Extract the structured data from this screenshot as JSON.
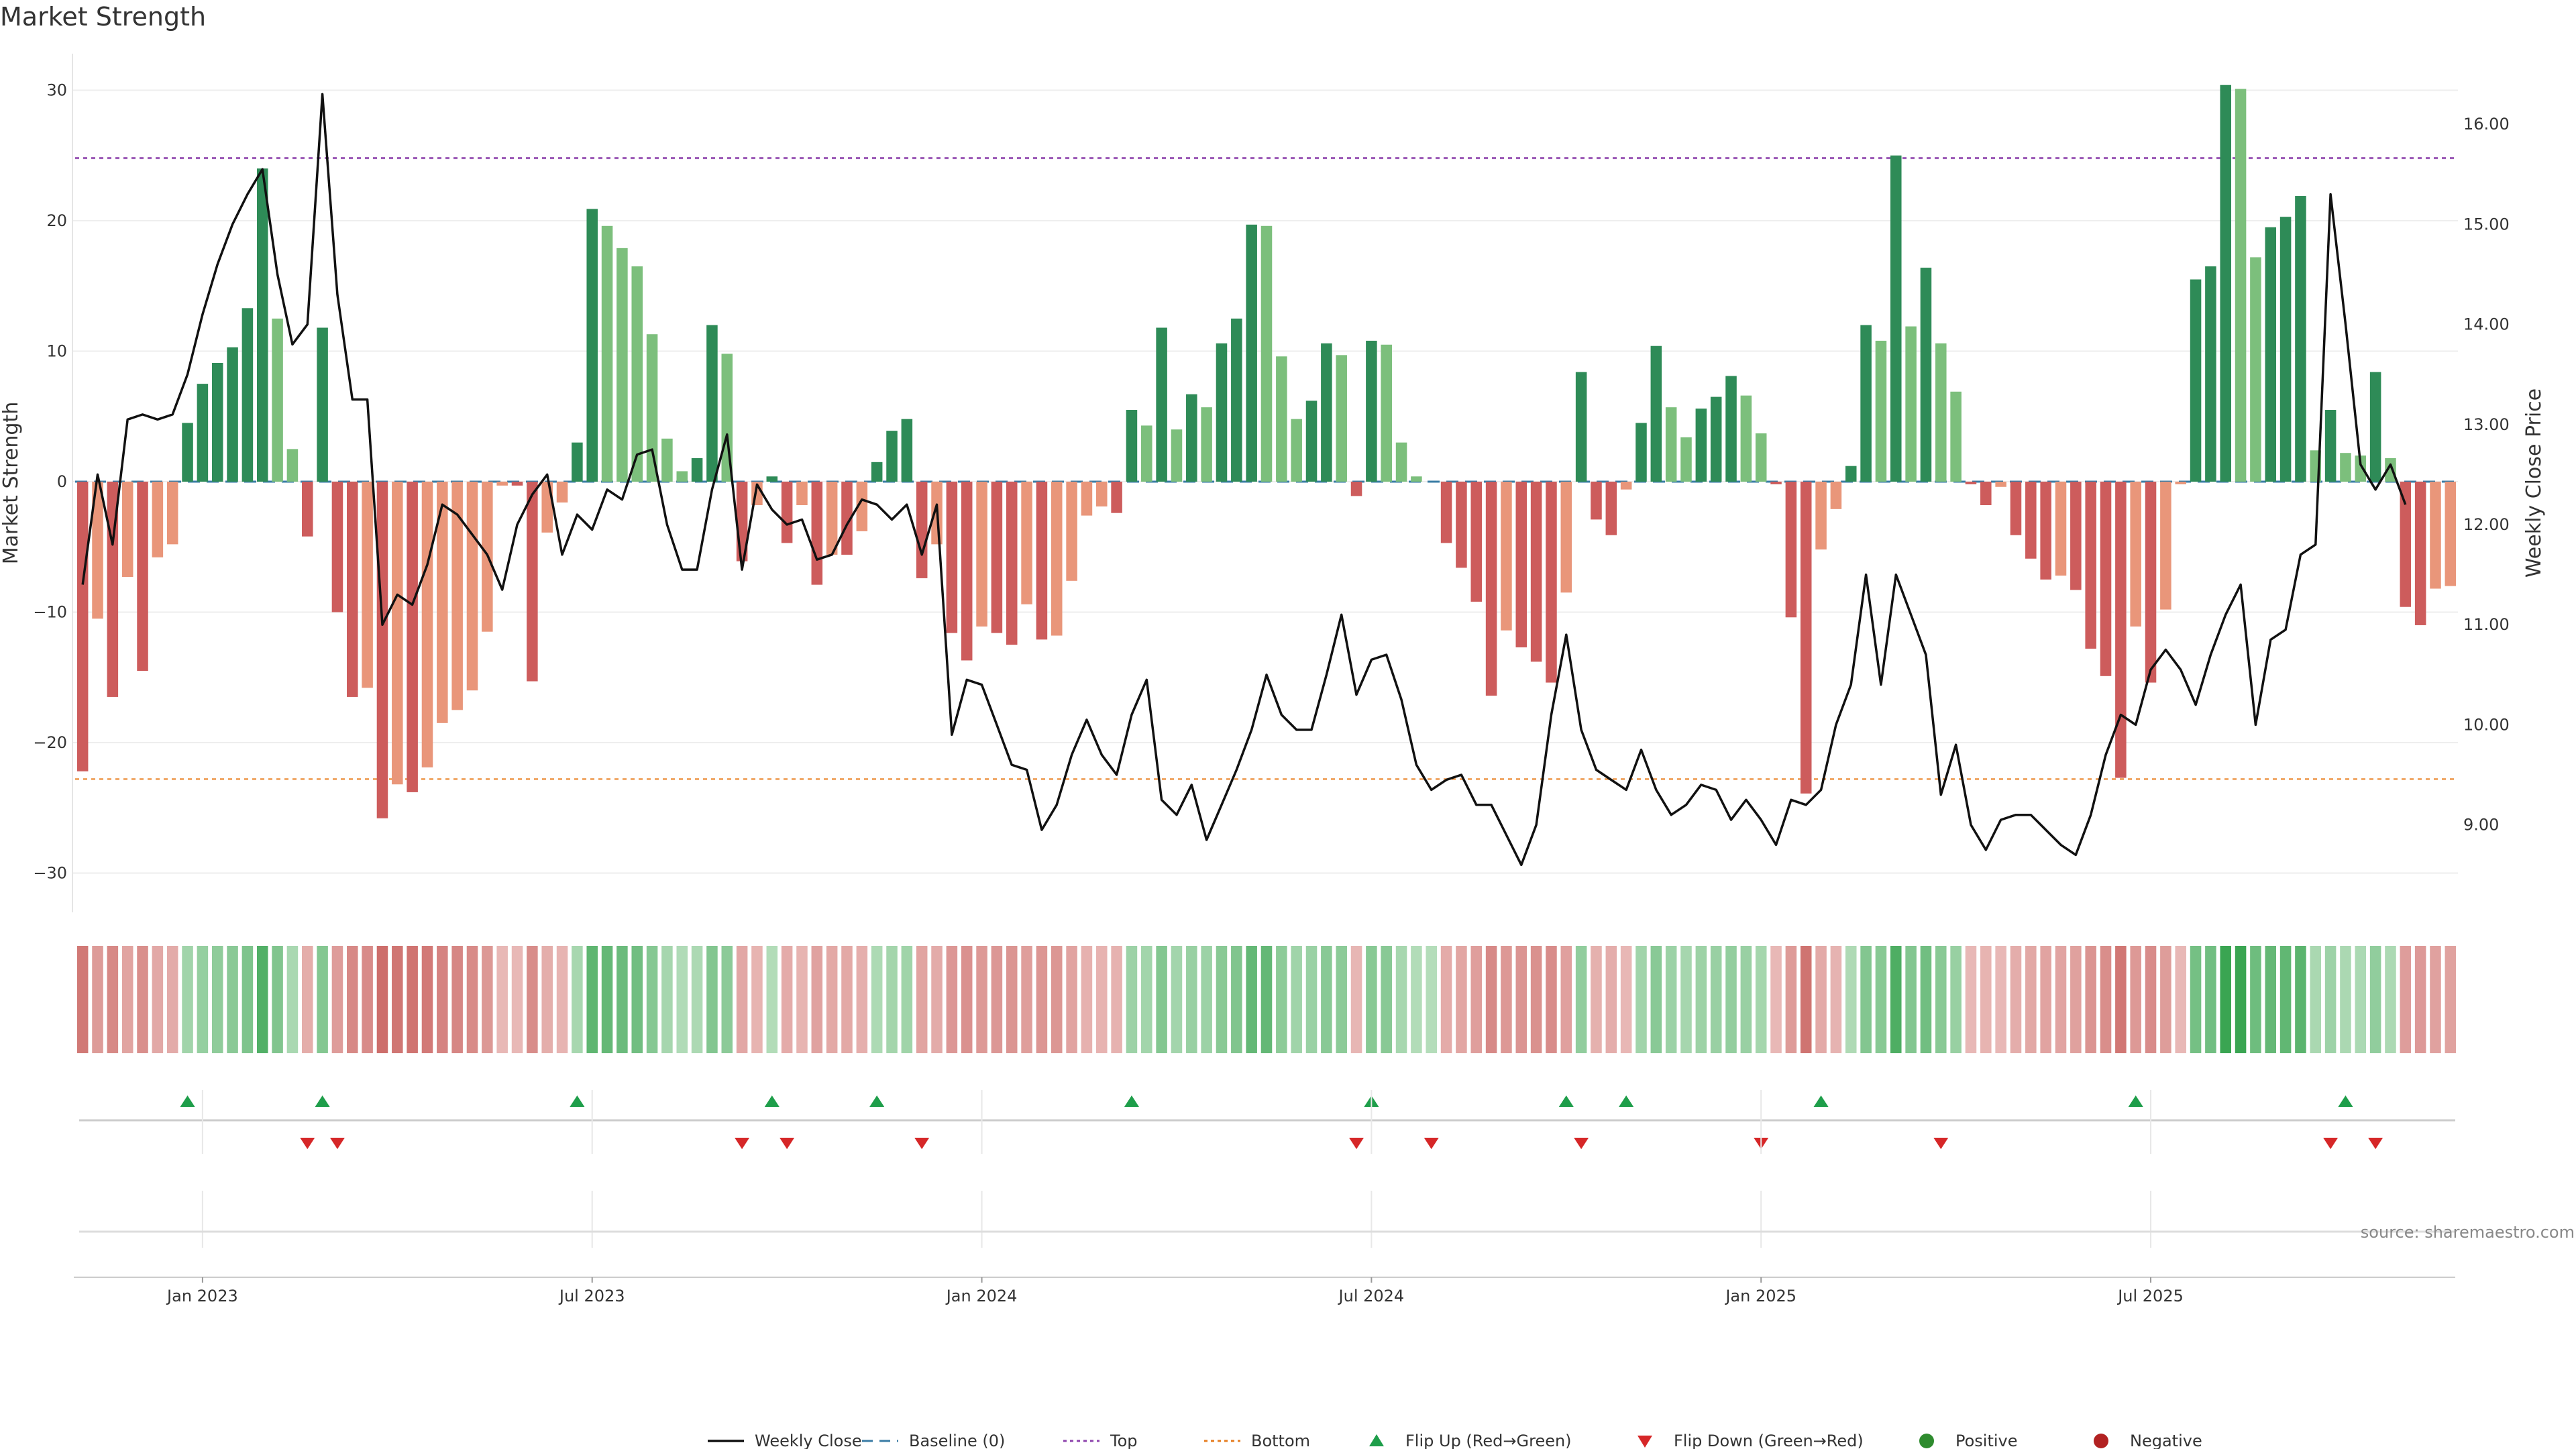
{
  "chart_data": {
    "type": "bar",
    "title": "Market Strength",
    "ylabel_left": "Market Strength",
    "ylabel_right": "Weekly Close Price",
    "ylim_left": [
      -33,
      33
    ],
    "ylim_right": [
      8.4,
      16.5
    ],
    "left_ticks": [
      "30",
      "20",
      "10",
      "0",
      "−10",
      "−20",
      "−30"
    ],
    "left_tick_values": [
      30,
      20,
      10,
      0,
      -10,
      -20,
      -30
    ],
    "right_ticks": [
      "16.00",
      "15.00",
      "14.00",
      "13.00",
      "12.00",
      "11.00",
      "10.00",
      "9.00"
    ],
    "right_tick_values": [
      16,
      15,
      14,
      13,
      12,
      11,
      10,
      9
    ],
    "x_tick_labels": [
      "Jan 2023",
      "Jul 2023",
      "Jan 2024",
      "Jul 2024",
      "Jan 2025",
      "Jul 2025"
    ],
    "x_tick_weeks": [
      8,
      34,
      60,
      86,
      112,
      138
    ],
    "top_line": 24.8,
    "bottom_line": -22.8,
    "strength": [
      -22.2,
      -10.5,
      -16.5,
      -7.3,
      -14.5,
      -5.8,
      -4.8,
      4.5,
      7.5,
      9.1,
      10.3,
      13.3,
      24.0,
      12.5,
      2.5,
      -4.2,
      11.8,
      -10.0,
      -16.5,
      -15.8,
      -25.8,
      -23.2,
      -23.8,
      -21.9,
      -18.5,
      -17.5,
      -16.0,
      -11.5,
      -0.3,
      -0.3,
      -15.3,
      -3.9,
      -1.6,
      3.0,
      20.9,
      19.6,
      17.9,
      16.5,
      11.3,
      3.3,
      0.8,
      1.8,
      12.0,
      9.8,
      -6.1,
      -1.8,
      0.4,
      -4.7,
      -1.8,
      -7.9,
      -5.6,
      -5.6,
      -3.8,
      1.5,
      3.9,
      4.8,
      -7.4,
      -4.8,
      -11.6,
      -13.7,
      -11.1,
      -11.6,
      -12.5,
      -9.4,
      -12.1,
      -11.8,
      -7.6,
      -2.6,
      -1.9,
      -2.4,
      5.5,
      4.3,
      11.8,
      4.0,
      6.7,
      5.7,
      10.6,
      12.5,
      19.7,
      19.6,
      9.6,
      4.8,
      6.2,
      10.6,
      9.7,
      -1.1,
      10.8,
      10.5,
      3.0,
      0.4,
      0,
      -4.7,
      -6.6,
      -9.2,
      -16.4,
      -11.4,
      -12.7,
      -13.8,
      -15.4,
      -8.5,
      8.4,
      -2.9,
      -4.1,
      -0.6,
      4.5,
      10.4,
      5.7,
      3.4,
      5.6,
      6.5,
      8.1,
      6.6,
      3.7,
      -0.2,
      -10.4,
      -23.9,
      -5.2,
      -2.1,
      1.2,
      12.0,
      10.8,
      25.0,
      11.9,
      16.4,
      10.6,
      6.9,
      -0.2,
      -1.8,
      -0.4,
      -4.1,
      -5.9,
      -7.5,
      -7.2,
      -8.3,
      -12.8,
      -14.9,
      -22.7,
      -11.1,
      -15.4,
      -9.8,
      -0.2,
      15.5,
      16.5,
      30.4,
      30.1,
      17.2,
      19.5,
      20.3,
      21.9,
      2.4,
      5.5,
      2.2,
      2.0,
      8.4,
      1.8,
      -9.6,
      -11.0,
      -8.2,
      -8.0
    ],
    "close": [
      11.4,
      12.5,
      11.8,
      13.05,
      13.1,
      13.05,
      13.1,
      13.5,
      14.1,
      14.6,
      15.0,
      15.3,
      15.55,
      14.5,
      13.8,
      14.0,
      16.3,
      14.3,
      13.25,
      13.25,
      11.0,
      11.3,
      11.2,
      11.6,
      12.2,
      12.1,
      11.9,
      11.7,
      11.35,
      12.0,
      12.3,
      12.5,
      11.7,
      12.1,
      11.95,
      12.35,
      12.25,
      12.7,
      12.75,
      12.0,
      11.55,
      11.55,
      12.35,
      12.9,
      11.55,
      12.4,
      12.15,
      12.0,
      12.05,
      11.65,
      11.7,
      12.0,
      12.25,
      12.2,
      12.05,
      12.2,
      11.7,
      12.2,
      9.9,
      10.45,
      10.4,
      10.0,
      9.6,
      9.55,
      8.95,
      9.2,
      9.7,
      10.05,
      9.7,
      9.5,
      10.1,
      10.45,
      9.25,
      9.1,
      9.4,
      8.85,
      9.2,
      9.55,
      9.95,
      10.5,
      10.1,
      9.95,
      9.95,
      10.5,
      11.1,
      10.3,
      10.65,
      10.7,
      10.25,
      9.6,
      9.35,
      9.45,
      9.5,
      9.2,
      9.2,
      8.9,
      8.6,
      9.0,
      10.1,
      10.9,
      9.95,
      9.55,
      9.45,
      9.35,
      9.75,
      9.35,
      9.1,
      9.2,
      9.4,
      9.35,
      9.05,
      9.25,
      9.05,
      8.8,
      9.25,
      9.2,
      9.35,
      10.0,
      10.4,
      11.5,
      10.4,
      11.5,
      11.1,
      10.7,
      9.3,
      9.8,
      9.0,
      8.75,
      9.05,
      9.1,
      9.1,
      8.95,
      8.8,
      8.7,
      9.1,
      9.7,
      10.1,
      10.0,
      10.55,
      10.75,
      10.55,
      10.2,
      10.7,
      11.1,
      11.4,
      10.0,
      10.85,
      10.95,
      11.7,
      11.8,
      15.3,
      14.0,
      12.6,
      12.35,
      12.6,
      12.2
    ],
    "flip_up_weeks": [
      7,
      16,
      33,
      46,
      53,
      70,
      86,
      99,
      103,
      116,
      137,
      151
    ],
    "flip_down_weeks": [
      15,
      17,
      44,
      47,
      56,
      85,
      90,
      100,
      112,
      124,
      150,
      153
    ],
    "series": [
      {
        "name": "Weekly Close",
        "axis": "right"
      },
      {
        "name": "Market Strength",
        "axis": "left"
      }
    ]
  },
  "legend": {
    "items": [
      {
        "label": "Weekly Close",
        "symbol": "line",
        "color": "#111111"
      },
      {
        "label": "Baseline (0)",
        "symbol": "dash",
        "color": "#3a7ca5"
      },
      {
        "label": "Top",
        "symbol": "dot",
        "color": "#8e44ad"
      },
      {
        "label": "Bottom",
        "symbol": "dot",
        "color": "#e67e22"
      },
      {
        "label": "Flip Up (Red→Green)",
        "symbol": "triangle-up",
        "color": "#1e9e4a"
      },
      {
        "label": "Flip Down (Green→Red)",
        "symbol": "triangle-down",
        "color": "#d62728"
      },
      {
        "label": "Positive",
        "symbol": "circle",
        "color": "#2e8b2e"
      },
      {
        "label": "Negative",
        "symbol": "circle",
        "color": "#b22222"
      }
    ]
  },
  "source": "source: sharemaestro.com",
  "colors": {
    "strong_green": "#2e8b57",
    "light_green": "#7cbf7c",
    "strong_red": "#cd5c5c",
    "light_red": "#e9967a",
    "close_line": "#111111",
    "baseline": "#3a7ca5",
    "top_line": "#9b59b6",
    "bottom_line": "#f0a868"
  }
}
